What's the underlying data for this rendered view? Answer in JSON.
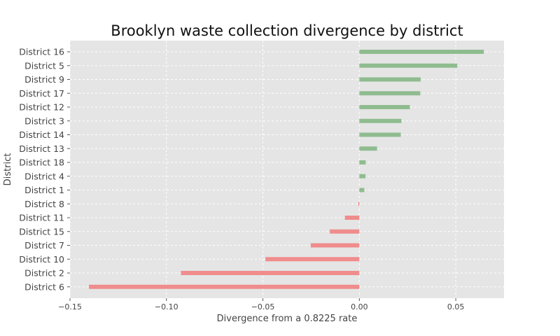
{
  "chart_data": {
    "type": "bar",
    "orientation": "horizontal",
    "title": "Brooklyn waste collection divergence by district",
    "xlabel": "Divergence from a 0.8225 rate",
    "ylabel": "District",
    "xlim": [
      -0.15,
      0.075
    ],
    "xticks": [
      -0.15,
      -0.1,
      -0.05,
      0.0,
      0.05
    ],
    "xtick_labels": [
      "−0.15",
      "−0.10",
      "−0.05",
      "0.00",
      "0.05"
    ],
    "grid": true,
    "colors": {
      "positive": "#8fbc8f",
      "negative": "#f08c8c",
      "background": "#e5e5e5",
      "grid": "#ffffff"
    },
    "categories": [
      "District 16",
      "District 5",
      "District 9",
      "District 17",
      "District 12",
      "District 3",
      "District 14",
      "District 13",
      "District 18",
      "District 4",
      "District 1",
      "District 8",
      "District 11",
      "District 15",
      "District 7",
      "District 10",
      "District 2",
      "District 6"
    ],
    "values": [
      0.0645,
      0.0508,
      0.0318,
      0.0316,
      0.0262,
      0.0218,
      0.0215,
      0.0092,
      0.0033,
      0.0032,
      0.0026,
      -0.0005,
      -0.0075,
      -0.0153,
      -0.0252,
      -0.0487,
      -0.0925,
      -0.1402
    ]
  }
}
